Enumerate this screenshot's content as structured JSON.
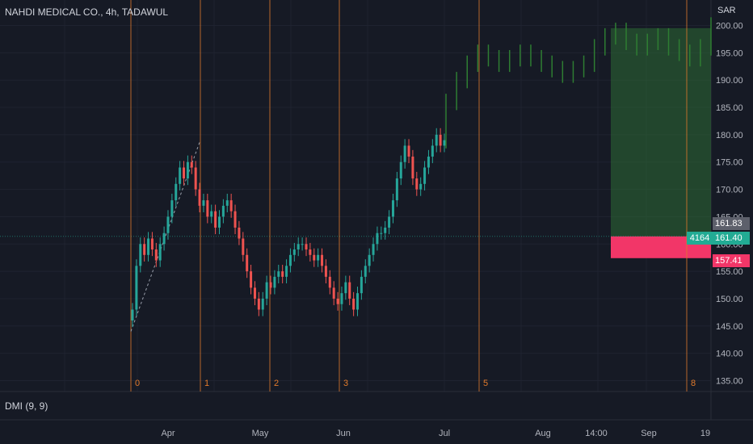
{
  "header": {
    "symbol_title": "NAHDI MEDICAL CO., 4h, TADAWUL",
    "currency": "SAR"
  },
  "indicator": {
    "label": "DMI (9, 9)"
  },
  "price_axis": {
    "ticks": [
      "200.00",
      "195.00",
      "190.00",
      "185.00",
      "180.00",
      "175.00",
      "170.00",
      "165.00",
      "160.00",
      "155.00",
      "150.00",
      "145.00",
      "140.00",
      "135.00"
    ],
    "badges": {
      "upper": "161.83",
      "current": "161.40",
      "stop": "157.41",
      "count": "4164"
    }
  },
  "time_axis": {
    "ticks": [
      "Apr",
      "May",
      "Jun",
      "Jul",
      "Aug",
      "14:00",
      "Sep",
      "19"
    ]
  },
  "cycle_markers": [
    "0",
    "1",
    "2",
    "3",
    "5",
    "8"
  ],
  "colors": {
    "up": "#26a69a",
    "down": "#ef5350",
    "projection": "#2e7d32",
    "cycle_line": "#e07a2c",
    "target_zone": "#2e6b35",
    "stop_zone": "#f23668"
  },
  "chart_data": {
    "type": "candlestick",
    "ylim": [
      133,
      202
    ],
    "series_close": [
      148,
      156,
      160,
      158,
      161,
      159,
      157,
      160,
      162,
      165,
      168,
      171,
      174,
      172,
      175,
      174,
      170,
      167,
      168,
      165,
      166,
      163,
      165,
      167,
      168,
      166,
      163,
      161,
      158,
      155,
      152,
      150,
      148,
      150,
      153,
      152,
      154,
      155,
      154,
      156,
      158,
      159,
      160,
      160,
      159,
      158,
      157,
      158,
      156,
      154,
      152,
      150,
      149,
      151,
      153,
      150,
      148,
      151,
      154,
      156,
      158,
      160,
      162,
      162,
      163,
      165,
      168,
      172,
      175,
      178,
      176,
      172,
      170,
      171,
      174,
      176,
      178,
      180,
      178,
      179
    ],
    "projection_close": [
      186,
      190,
      193,
      195,
      194,
      193,
      194,
      195,
      194,
      193,
      192,
      191,
      192,
      193,
      196,
      198,
      199,
      197,
      196,
      197,
      198,
      196,
      195,
      194,
      196,
      200
    ]
  }
}
